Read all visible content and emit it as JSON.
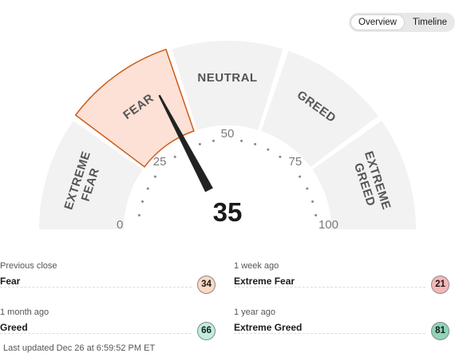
{
  "toggle": {
    "overview": "Overview",
    "timeline": "Timeline",
    "active": "overview"
  },
  "gauge": {
    "score": "35",
    "segments": [
      {
        "line1": "EXTREME",
        "line2": "FEAR"
      },
      {
        "line1": "FEAR",
        "line2": ""
      },
      {
        "line1": "NEUTRAL",
        "line2": ""
      },
      {
        "line1": "GREED",
        "line2": ""
      },
      {
        "line1": "EXTREME",
        "line2": "GREED"
      }
    ],
    "active_segment": 1,
    "ticks": [
      "0",
      "25",
      "50",
      "75",
      "100"
    ],
    "colors": {
      "active_fill": "#fde0d6",
      "active_border": "#cc5c16",
      "segment": "#f2f2f2",
      "needle": "#222222"
    }
  },
  "history": [
    {
      "caption": "Previous close",
      "label": "Fear",
      "value": "34",
      "color": "#fcd9c4"
    },
    {
      "caption": "1 week ago",
      "label": "Extreme Fear",
      "value": "21",
      "color": "#f6b7b7"
    },
    {
      "caption": "1 month ago",
      "label": "Greed",
      "value": "66",
      "color": "#bfeedd"
    },
    {
      "caption": "1 year ago",
      "label": "Extreme Greed",
      "value": "81",
      "color": "#8fd4b7"
    }
  ],
  "last_updated": "Last updated Dec 26 at 6:59:52 PM ET"
}
